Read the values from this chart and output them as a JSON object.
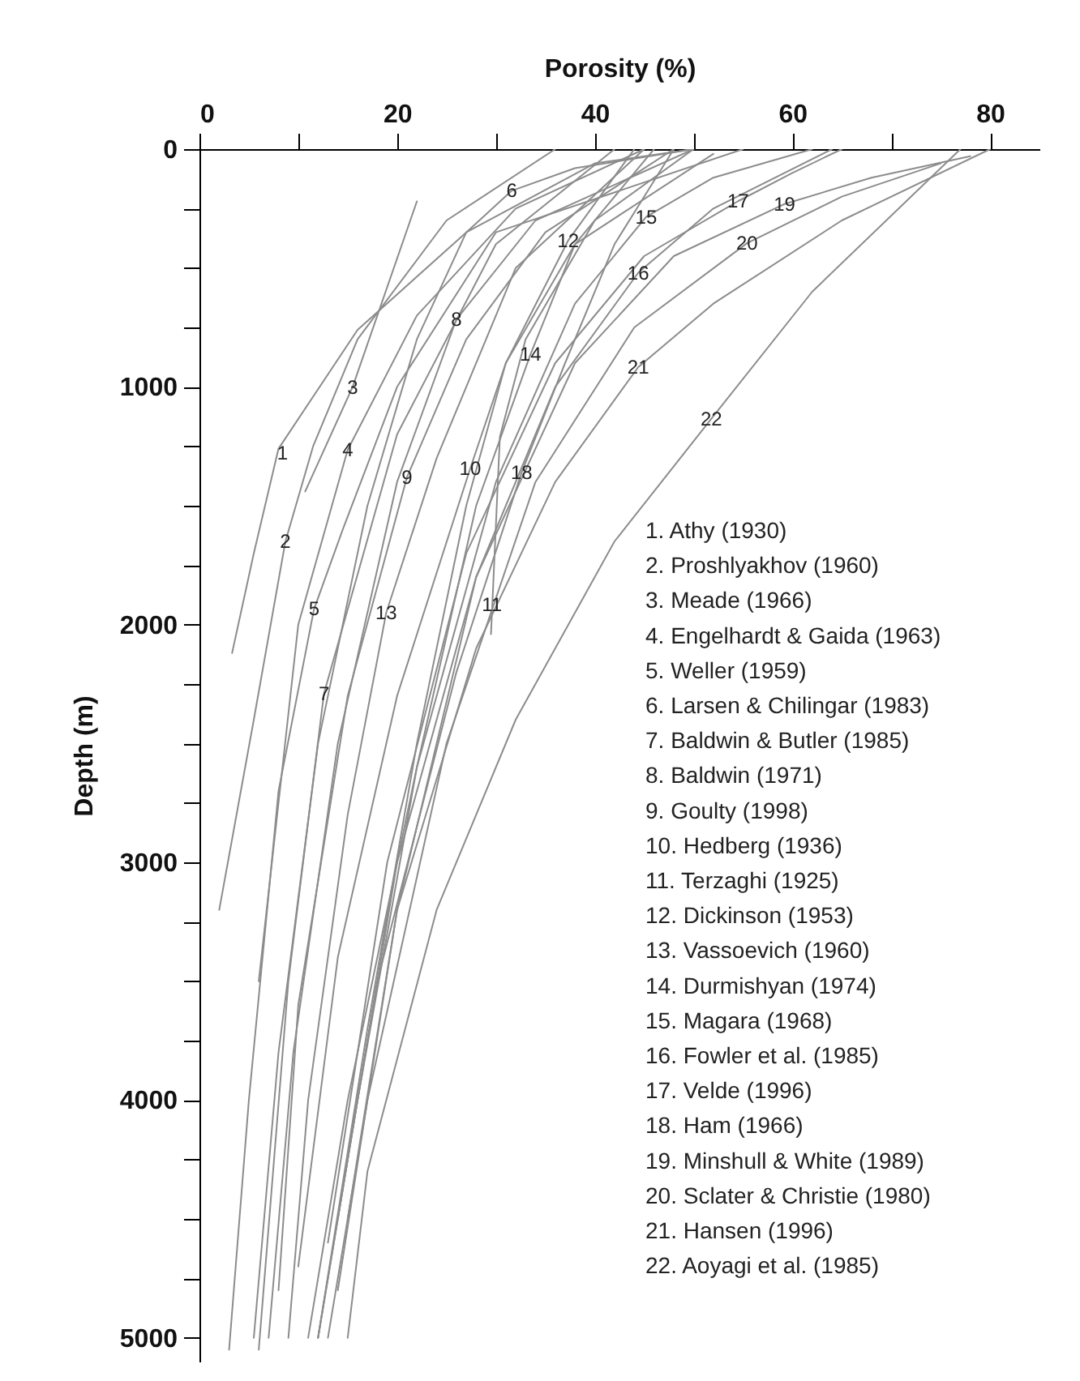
{
  "chart_data": {
    "type": "line",
    "xlabel": "Porosity (%)",
    "ylabel": "Depth (m)",
    "xlim": [
      0,
      85
    ],
    "ylim": [
      5100,
      0
    ],
    "xticks": [
      0,
      {
        "value": 10,
        "label": null
      },
      20,
      {
        "value": 30,
        "label": null
      },
      40,
      {
        "value": 50,
        "label": null
      },
      60,
      {
        "value": 70,
        "label": null
      },
      80
    ],
    "yticks": [
      0,
      {
        "value": 250,
        "label": null
      },
      {
        "value": 500,
        "label": null
      },
      {
        "value": 750,
        "label": null
      },
      1000,
      {
        "value": 1250,
        "label": null
      },
      {
        "value": 1500,
        "label": null
      },
      {
        "value": 1750,
        "label": null
      },
      2000,
      {
        "value": 2250,
        "label": null
      },
      {
        "value": 2500,
        "label": null
      },
      {
        "value": 2750,
        "label": null
      },
      3000,
      {
        "value": 3250,
        "label": null
      },
      {
        "value": 3500,
        "label": null
      },
      {
        "value": 3750,
        "label": null
      },
      4000,
      {
        "value": 4250,
        "label": null
      },
      {
        "value": 4500,
        "label": null
      },
      {
        "value": 4750,
        "label": null
      },
      5000
    ],
    "grid": false,
    "series": [
      {
        "color": "#8c8c8c",
        "x": [
          50,
          40,
          27,
          16,
          8,
          5.5,
          3.3
        ],
        "values": [
          0,
          60,
          350,
          760,
          1260,
          1700,
          2120
        ]
      },
      {
        "color": "#8c8c8c",
        "x": [
          36,
          25,
          16,
          11.5,
          8.7,
          5.5,
          2
        ],
        "values": [
          0,
          300,
          800,
          1250,
          1650,
          2400,
          3200
        ]
      },
      {
        "color": "#8c8c8c",
        "x": [
          22,
          15.5,
          10.7
        ],
        "values": [
          220,
          1000,
          1440
        ]
      },
      {
        "color": "#8c8c8c",
        "x": [
          45,
          32,
          22,
          15,
          10,
          6
        ],
        "values": [
          0,
          250,
          700,
          1265,
          2000,
          3500
        ]
      },
      {
        "color": "#8c8c8c",
        "x": [
          55,
          30,
          20,
          14.5,
          11.6,
          8,
          5,
          3
        ],
        "values": [
          0,
          350,
          1000,
          1600,
          1934,
          2700,
          4000,
          5050
        ]
      },
      {
        "color": "#8c8c8c",
        "x": [
          50,
          38,
          31.6,
          27,
          22,
          17,
          12,
          8,
          5.5
        ],
        "values": [
          0,
          80,
          175,
          350,
          800,
          1500,
          2500,
          3800,
          5000
        ]
      },
      {
        "color": "#8c8c8c",
        "x": [
          42,
          30,
          20,
          12.6,
          9,
          6
        ],
        "values": [
          0,
          400,
          1200,
          2290,
          3500,
          5050
        ]
      },
      {
        "color": "#8c8c8c",
        "x": [
          50,
          34,
          26,
          20,
          14,
          9.5,
          7
        ],
        "values": [
          0,
          300,
          716,
          1400,
          2500,
          3800,
          5000
        ]
      },
      {
        "color": "#8c8c8c",
        "x": [
          48,
          35,
          27,
          21,
          15,
          10,
          8
        ],
        "values": [
          0,
          350,
          800,
          1380,
          2300,
          3600,
          4800
        ]
      },
      {
        "color": "#8c8c8c",
        "x": [
          52,
          38,
          31,
          27.4,
          20,
          14,
          10
        ],
        "values": [
          20,
          400,
          900,
          1343,
          2300,
          3400,
          4700
        ]
      },
      {
        "color": "#8c8c8c",
        "x": [
          50,
          40,
          33,
          30.4,
          29.5
        ],
        "values": [
          0,
          300,
          800,
          1210,
          2040
        ]
      },
      {
        "color": "#8c8c8c",
        "x": [
          44,
          37.3,
          31,
          27,
          22,
          17,
          12
        ],
        "values": [
          0,
          385,
          900,
          1500,
          2500,
          3700,
          5000
        ]
      },
      {
        "color": "#8c8c8c",
        "x": [
          45,
          32,
          24,
          18.9,
          15,
          11,
          9
        ],
        "values": [
          0,
          500,
          1300,
          1950,
          2800,
          4000,
          5000
        ]
      },
      {
        "color": "#8c8c8c",
        "x": [
          46,
          38,
          33.5,
          28,
          22,
          16,
          12
        ],
        "values": [
          0,
          400,
          863,
          1500,
          2600,
          4000,
          5000
        ]
      },
      {
        "color": "#8c8c8c",
        "x": [
          62,
          52,
          45.2,
          38,
          30,
          22,
          15,
          11
        ],
        "values": [
          0,
          120,
          285,
          650,
          1400,
          2600,
          4000,
          5000
        ]
      },
      {
        "color": "#8c8c8c",
        "x": [
          64,
          52,
          44.4,
          36,
          28,
          20,
          14
        ],
        "values": [
          0,
          250,
          520,
          1000,
          1800,
          3000,
          4500
        ]
      },
      {
        "color": "#8c8c8c",
        "x": [
          65,
          60,
          54.5,
          45,
          36,
          27,
          19,
          13
        ],
        "values": [
          0,
          100,
          219,
          450,
          900,
          1700,
          3000,
          4600
        ]
      },
      {
        "color": "#8c8c8c",
        "x": [
          48,
          42,
          37,
          32.6,
          26,
          18,
          12
        ],
        "values": [
          0,
          400,
          900,
          1360,
          2200,
          3500,
          5000
        ]
      },
      {
        "color": "#8c8c8c",
        "x": [
          78,
          68,
          59.2,
          48,
          38,
          28,
          20,
          14
        ],
        "values": [
          30,
          120,
          231,
          450,
          900,
          1800,
          3200,
          4800
        ]
      },
      {
        "color": "#8c8c8c",
        "x": [
          75,
          65,
          55.4,
          44,
          34,
          25,
          17,
          13
        ],
        "values": [
          60,
          200,
          396,
          750,
          1400,
          2500,
          4000,
          5000
        ]
      },
      {
        "color": "#8c8c8c",
        "x": [
          80,
          65,
          52,
          44.4,
          36,
          28,
          20,
          15
        ],
        "values": [
          0,
          300,
          650,
          917,
          1400,
          2100,
          3200,
          4500
        ]
      },
      {
        "color": "#8c8c8c",
        "x": [
          77,
          62,
          51.8,
          42,
          32,
          24,
          17,
          15
        ],
        "values": [
          0,
          600,
          1134,
          1650,
          2400,
          3200,
          4300,
          5000
        ]
      }
    ],
    "annotations": [
      {
        "text": "1",
        "x": 8.4,
        "y": 1280
      },
      {
        "text": "2",
        "x": 8.7,
        "y": 1650
      },
      {
        "text": "3",
        "x": 15.5,
        "y": 1003
      },
      {
        "text": "4",
        "x": 15,
        "y": 1265
      },
      {
        "text": "5",
        "x": 11.6,
        "y": 1934
      },
      {
        "text": "6",
        "x": 31.6,
        "y": 175
      },
      {
        "text": "7",
        "x": 12.6,
        "y": 2290
      },
      {
        "text": "8",
        "x": 26,
        "y": 716
      },
      {
        "text": "9",
        "x": 21,
        "y": 1380
      },
      {
        "text": "10",
        "x": 27.4,
        "y": 1343
      },
      {
        "text": "11",
        "x": 29.6,
        "y": 1916
      },
      {
        "text": "12",
        "x": 37.3,
        "y": 385
      },
      {
        "text": "13",
        "x": 18.9,
        "y": 1950
      },
      {
        "text": "14",
        "x": 33.5,
        "y": 863
      },
      {
        "text": "15",
        "x": 45.2,
        "y": 285
      },
      {
        "text": "16",
        "x": 44.4,
        "y": 520
      },
      {
        "text": "17",
        "x": 54.5,
        "y": 219
      },
      {
        "text": "18",
        "x": 32.6,
        "y": 1360
      },
      {
        "text": "19",
        "x": 59.2,
        "y": 231
      },
      {
        "text": "20",
        "x": 55.4,
        "y": 396
      },
      {
        "text": "21",
        "x": 44.4,
        "y": 917
      },
      {
        "text": "22",
        "x": 51.8,
        "y": 1134
      },
      "1. Athy (1930)",
      "2. Proshlyakhov (1960)",
      "3. Meade (1966)",
      "4. Engelhardt & Gaida (1963)",
      "5. Weller (1959)",
      "6. Larsen & Chilingar (1983)",
      "7. Baldwin & Butler (1985)",
      "8. Baldwin (1971)",
      "9. Goulty (1998)",
      "10. Hedberg (1936)",
      "11. Terzaghi (1925)",
      "12. Dickinson (1953)",
      "13. Vassoevich (1960)",
      "14. Durmishyan (1974)",
      "15. Magara (1968)",
      "16. Fowler et al. (1985)",
      "17. Velde (1996)",
      "18. Ham (1966)",
      "19. Minshull & White (1989)",
      "20. Sclater & Christie (1980)",
      "21. Hansen (1996)",
      "22. Aoyagi et al. (1985)"
    ]
  }
}
